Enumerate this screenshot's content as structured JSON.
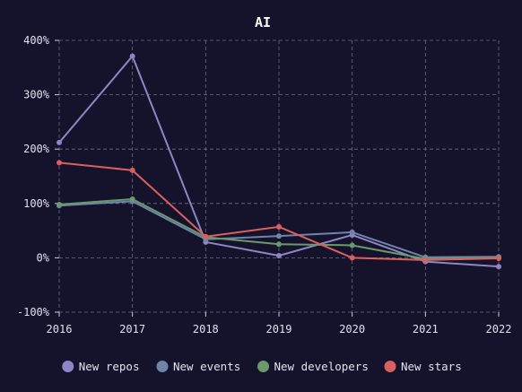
{
  "chart_data": {
    "type": "line",
    "title": "AI",
    "xlabel": "",
    "ylabel": "",
    "x": [
      "2016",
      "2017",
      "2018",
      "2019",
      "2020",
      "2021",
      "2022"
    ],
    "ylim": [
      -100,
      400
    ],
    "yticks": [
      -100,
      0,
      100,
      200,
      300,
      400
    ],
    "ytick_labels": [
      "-100%",
      "0%",
      "100%",
      "200%",
      "300%",
      "400%"
    ],
    "grid": true,
    "legend_position": "bottom",
    "series": [
      {
        "name": "New repos",
        "color": "#8e86c4",
        "values": [
          212,
          371,
          29,
          4,
          42,
          -7,
          -16
        ]
      },
      {
        "name": "New events",
        "color": "#6f84a8",
        "values": [
          96,
          104,
          34,
          40,
          47,
          1,
          2
        ]
      },
      {
        "name": "New developers",
        "color": "#6a9a6c",
        "values": [
          98,
          108,
          38,
          25,
          23,
          -2,
          0
        ]
      },
      {
        "name": "New stars",
        "color": "#d9605f",
        "values": [
          175,
          161,
          39,
          57,
          0,
          -4,
          -1
        ]
      }
    ]
  }
}
